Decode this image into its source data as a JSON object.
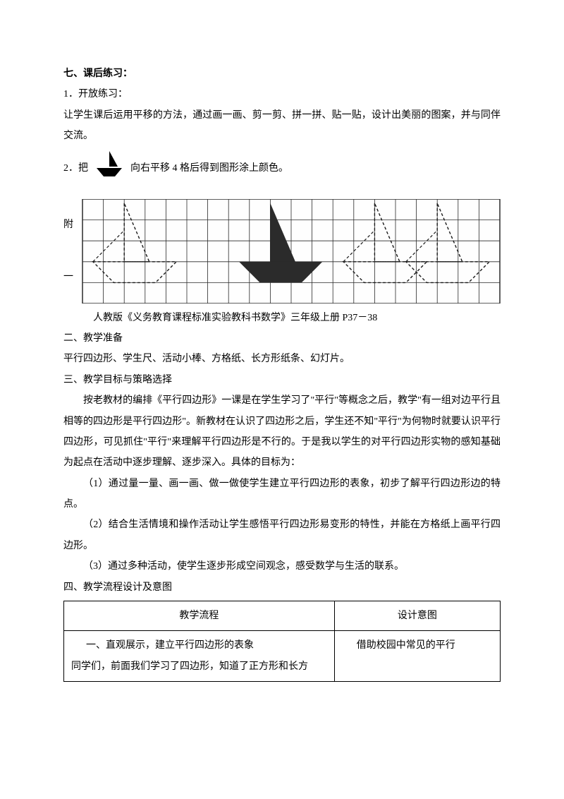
{
  "section_title": "七、课后练习：",
  "q1_title": "1．开放练习：",
  "q1_body": "让学生课后运用平移的方法，通过画一画、剪一剪、拼一拼、贴一贴，设计出美丽的图案，并与同伴交流。",
  "q2_pre": "2．把",
  "q2_after": "向右平移 4 格后得到图形涂上颜色。",
  "grid_label_1": "附",
  "grid_label_2": "一",
  "grid": {
    "cols": 20,
    "rows": 5,
    "cell": 29.6,
    "stroke": "#2a2a2a",
    "bg": "#fefefe",
    "dash": "4 3",
    "dash_stroke": "#1a1a1a",
    "fill": "#2b2b2b"
  },
  "boat_small_fill": "#000000",
  "caption": "人教版《义务教育课程标准实验教科书数学》三年级上册 P37－38",
  "h2": "二、教学准备",
  "p2": "平行四边形、学生尺、活动小棒、方格纸、长方形纸条、幻灯片。",
  "h3": "三、教学目标与策略选择",
  "p3_1": "按老教材的编排《平行四边形》一课是在学生学习了\"平行\"等概念之后，教学\"有一组对边平行且相等的四边形是平行四边形\"。新教材在认识了四边形之后，学生还不知\"平行\"为何物时就要认识平行四边形，可见抓住\"平行\"来理解平行四边形是不行的。于是我以学生的对平行四边形实物的感知基础为起点在活动中逐步理解、逐步深入。具体的目标为：",
  "p3_2": "（1）通过量一量、画一画、做一做使学生建立平行四边形的表象，初步了解平行四边形边的特点。",
  "p3_3": "（2）结合生活情境和操作活动让学生感悟平行四边形易变形的特性，并能在方格纸上画平行四边形。",
  "p3_4": "（3）通过多种活动，使学生逐步形成空间观念，感受数学与生活的联系。",
  "h4": "四、教学流程设计及意图",
  "table": {
    "header": [
      "教学流程",
      "设计意图"
    ],
    "row": [
      "一、直观展示，建立平行四边形的表象\n同学们，前面我们学习了四边形，知道了正方形和长方",
      "借助校园中常见的平行"
    ],
    "border_color": "#000000"
  },
  "colors": {
    "text": "#000000",
    "bg": "#ffffff"
  },
  "fontsize_pt": 10.5
}
